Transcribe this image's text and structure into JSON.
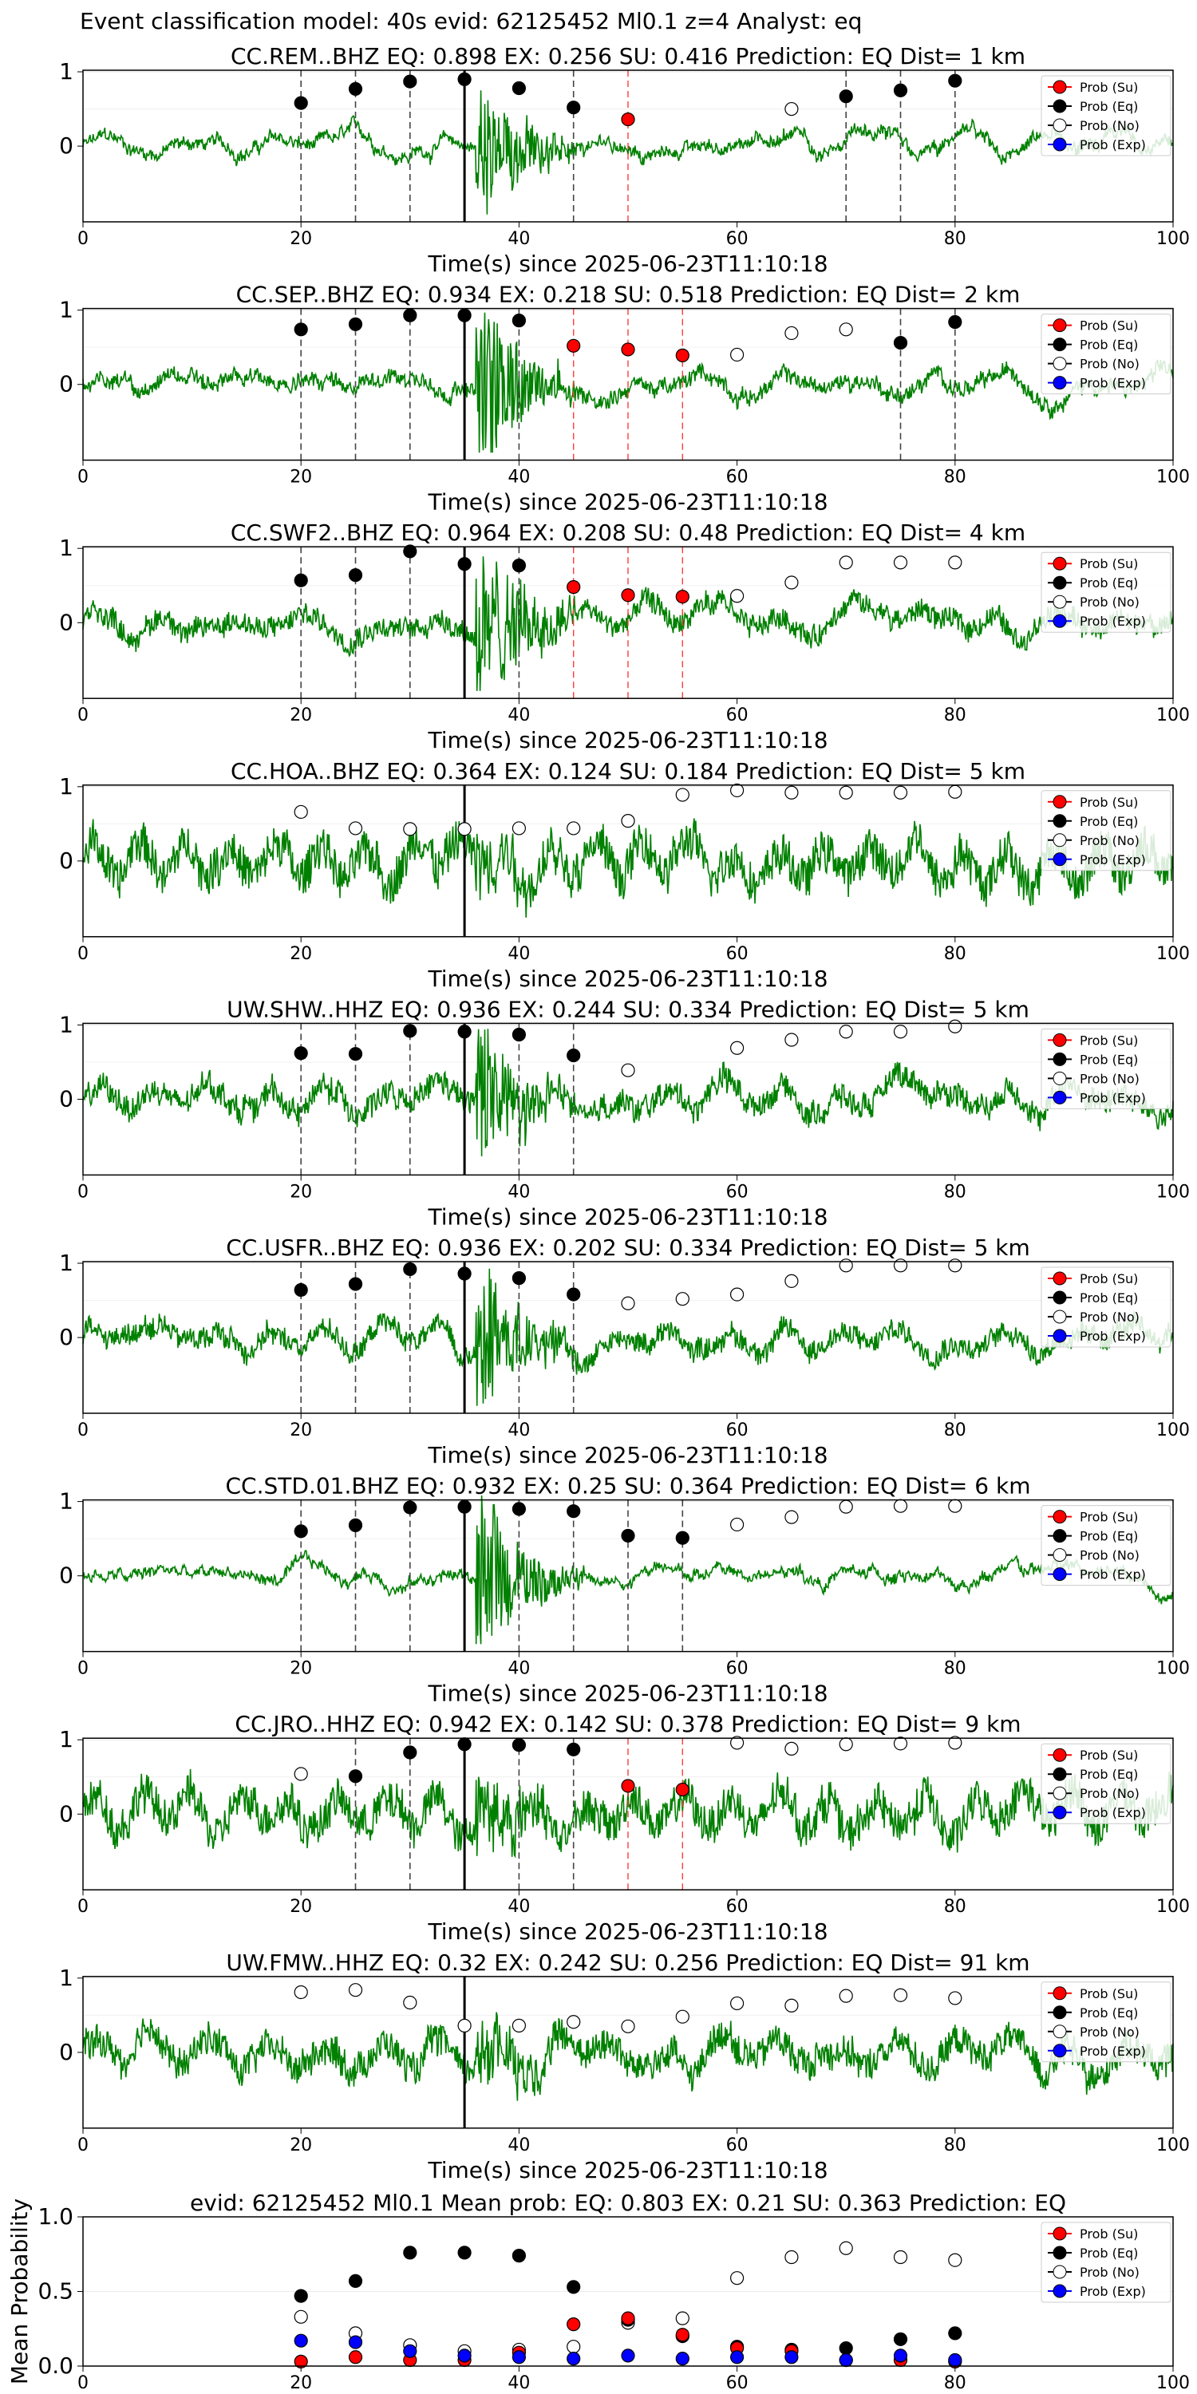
{
  "suptitle": "Event classification model: 40s evid: 62125452 Ml0.1 z=4 Analyst: eq",
  "colors": {
    "su": "#ff0000",
    "eq": "#000000",
    "no": "#ffffff",
    "exp": "#0000ff",
    "trace": "#008000"
  },
  "legend_labels": [
    "Prob (Su)",
    "Prob (Eq)",
    "Prob (No)",
    "Prob (Exp)"
  ],
  "xlabel": "Time(s) since 2025-06-23T11:10:18",
  "xticks": [
    "0",
    "20",
    "40",
    "60",
    "80",
    "100"
  ],
  "yticks": [
    "0",
    "1"
  ],
  "chart_data": [
    {
      "type": "line",
      "title": "CC.REM..BHZ   EQ: 0.898  EX: 0.256  SU: 0.416   Prediction: EQ    Dist= 1 km",
      "xlim": [
        0,
        100
      ],
      "eq": [
        [
          20,
          0.58
        ],
        [
          25,
          0.77
        ],
        [
          30,
          0.87
        ],
        [
          35,
          0.9
        ],
        [
          40,
          0.78
        ],
        [
          45,
          0.52
        ],
        [
          70,
          0.67
        ],
        [
          75,
          0.75
        ],
        [
          80,
          0.88
        ]
      ],
      "su": [
        [
          50,
          0.36
        ]
      ],
      "no": [
        [
          65,
          0.5
        ]
      ],
      "exp": [],
      "vlines_eq": [
        20,
        25,
        30,
        45,
        70,
        75,
        80
      ],
      "vlines_su": [
        50
      ],
      "arrival": 35
    },
    {
      "type": "line",
      "title": "CC.SEP..BHZ   EQ: 0.934  EX: 0.218  SU: 0.518   Prediction: EQ    Dist= 2 km",
      "xlim": [
        0,
        100
      ],
      "eq": [
        [
          20,
          0.74
        ],
        [
          25,
          0.81
        ],
        [
          30,
          0.93
        ],
        [
          35,
          0.93
        ],
        [
          40,
          0.86
        ],
        [
          75,
          0.56
        ],
        [
          80,
          0.84
        ]
      ],
      "su": [
        [
          45,
          0.52
        ],
        [
          50,
          0.47
        ],
        [
          55,
          0.39
        ]
      ],
      "no": [
        [
          60,
          0.4
        ],
        [
          65,
          0.69
        ],
        [
          70,
          0.74
        ]
      ],
      "exp": [],
      "vlines_eq": [
        20,
        25,
        30,
        40,
        75,
        80
      ],
      "vlines_su": [
        45,
        50,
        55
      ],
      "arrival": 35
    },
    {
      "type": "line",
      "title": "CC.SWF2..BHZ   EQ: 0.964  EX: 0.208  SU: 0.48   Prediction: EQ    Dist= 4 km",
      "xlim": [
        0,
        100
      ],
      "eq": [
        [
          20,
          0.57
        ],
        [
          25,
          0.64
        ],
        [
          30,
          0.96
        ],
        [
          35,
          0.79
        ],
        [
          40,
          0.77
        ]
      ],
      "su": [
        [
          45,
          0.48
        ],
        [
          50,
          0.37
        ],
        [
          55,
          0.35
        ]
      ],
      "no": [
        [
          60,
          0.36
        ],
        [
          65,
          0.54
        ],
        [
          70,
          0.81
        ],
        [
          75,
          0.81
        ],
        [
          80,
          0.81
        ]
      ],
      "exp": [],
      "vlines_eq": [
        20,
        25,
        30,
        40
      ],
      "vlines_su": [
        45,
        50,
        55
      ],
      "arrival": 35
    },
    {
      "type": "line",
      "title": "CC.HOA..BHZ   EQ: 0.364  EX: 0.124  SU: 0.184   Prediction: EQ    Dist= 5 km",
      "xlim": [
        0,
        100
      ],
      "eq": [],
      "su": [],
      "no": [
        [
          20,
          0.66
        ],
        [
          25,
          0.44
        ],
        [
          30,
          0.43
        ],
        [
          35,
          0.43
        ],
        [
          40,
          0.44
        ],
        [
          45,
          0.44
        ],
        [
          50,
          0.54
        ],
        [
          55,
          0.89
        ],
        [
          60,
          0.95
        ],
        [
          65,
          0.92
        ],
        [
          70,
          0.92
        ],
        [
          75,
          0.92
        ],
        [
          80,
          0.93
        ]
      ],
      "exp": [],
      "vlines_eq": [],
      "vlines_su": [],
      "arrival": 35
    },
    {
      "type": "line",
      "title": "UW.SHW..HHZ   EQ: 0.936  EX: 0.244  SU: 0.334   Prediction: EQ    Dist= 5 km",
      "xlim": [
        0,
        100
      ],
      "eq": [
        [
          20,
          0.62
        ],
        [
          25,
          0.61
        ],
        [
          30,
          0.92
        ],
        [
          35,
          0.91
        ],
        [
          40,
          0.87
        ],
        [
          45,
          0.59
        ]
      ],
      "su": [],
      "no": [
        [
          50,
          0.39
        ],
        [
          60,
          0.69
        ],
        [
          65,
          0.8
        ],
        [
          70,
          0.91
        ],
        [
          75,
          0.91
        ],
        [
          80,
          0.98
        ]
      ],
      "exp": [],
      "vlines_eq": [
        20,
        25,
        30,
        40,
        45
      ],
      "vlines_su": [],
      "arrival": 35
    },
    {
      "type": "line",
      "title": "CC.USFR..BHZ   EQ: 0.936  EX: 0.202  SU: 0.334   Prediction: EQ    Dist= 5 km",
      "xlim": [
        0,
        100
      ],
      "eq": [
        [
          20,
          0.64
        ],
        [
          25,
          0.72
        ],
        [
          30,
          0.92
        ],
        [
          35,
          0.86
        ],
        [
          40,
          0.8
        ],
        [
          45,
          0.58
        ]
      ],
      "su": [],
      "no": [
        [
          50,
          0.46
        ],
        [
          55,
          0.52
        ],
        [
          60,
          0.58
        ],
        [
          65,
          0.76
        ],
        [
          70,
          0.97
        ],
        [
          75,
          0.97
        ],
        [
          80,
          0.97
        ]
      ],
      "exp": [],
      "vlines_eq": [
        20,
        25,
        30,
        40,
        45
      ],
      "vlines_su": [],
      "arrival": 35
    },
    {
      "type": "line",
      "title": "CC.STD.01.BHZ   EQ: 0.932  EX: 0.25  SU: 0.364   Prediction: EQ    Dist= 6 km",
      "xlim": [
        0,
        100
      ],
      "eq": [
        [
          20,
          0.6
        ],
        [
          25,
          0.68
        ],
        [
          30,
          0.92
        ],
        [
          35,
          0.93
        ],
        [
          40,
          0.9
        ],
        [
          45,
          0.87
        ],
        [
          50,
          0.54
        ],
        [
          55,
          0.51
        ]
      ],
      "su": [],
      "no": [
        [
          60,
          0.69
        ],
        [
          65,
          0.79
        ],
        [
          70,
          0.93
        ],
        [
          75,
          0.94
        ],
        [
          80,
          0.94
        ]
      ],
      "exp": [],
      "vlines_eq": [
        20,
        25,
        30,
        40,
        45,
        50,
        55
      ],
      "vlines_su": [],
      "arrival": 35
    },
    {
      "type": "line",
      "title": "CC.JRO..HHZ   EQ: 0.942  EX: 0.142  SU: 0.378   Prediction: EQ    Dist= 9 km",
      "xlim": [
        0,
        100
      ],
      "eq": [
        [
          25,
          0.51
        ],
        [
          30,
          0.83
        ],
        [
          35,
          0.94
        ],
        [
          40,
          0.93
        ],
        [
          45,
          0.87
        ]
      ],
      "su": [
        [
          50,
          0.38
        ],
        [
          55,
          0.33
        ]
      ],
      "no": [
        [
          20,
          0.54
        ],
        [
          60,
          0.96
        ],
        [
          65,
          0.88
        ],
        [
          70,
          0.94
        ],
        [
          75,
          0.95
        ],
        [
          80,
          0.96
        ]
      ],
      "exp": [],
      "vlines_eq": [
        25,
        30,
        40,
        45
      ],
      "vlines_su": [
        50,
        55
      ],
      "arrival": 35
    },
    {
      "type": "line",
      "title": "UW.FMW..HHZ   EQ: 0.32  EX: 0.242  SU: 0.256   Prediction: EQ    Dist= 91 km",
      "xlim": [
        0,
        100
      ],
      "eq": [],
      "su": [],
      "no": [
        [
          20,
          0.81
        ],
        [
          25,
          0.84
        ],
        [
          30,
          0.67
        ],
        [
          35,
          0.36
        ],
        [
          40,
          0.36
        ],
        [
          45,
          0.41
        ],
        [
          50,
          0.35
        ],
        [
          55,
          0.48
        ],
        [
          60,
          0.66
        ],
        [
          65,
          0.63
        ],
        [
          70,
          0.76
        ],
        [
          75,
          0.77
        ],
        [
          80,
          0.73
        ]
      ],
      "exp": [],
      "vlines_eq": [],
      "vlines_su": [],
      "arrival": 35
    }
  ],
  "mean_chart": {
    "type": "scatter",
    "title": "evid: 62125452  Ml0.1   Mean prob:   EQ: 0.803  EX: 0.21  SU: 0.363   Prediction: EQ",
    "ylabel": "Mean Probability",
    "yticks": [
      "0.0",
      "0.5",
      "1.0"
    ],
    "xlim": [
      0,
      100
    ],
    "ylim": [
      0,
      1
    ],
    "x": [
      20,
      25,
      30,
      35,
      40,
      45,
      50,
      55,
      60,
      65,
      70,
      75,
      80
    ],
    "eq": [
      0.47,
      0.57,
      0.76,
      0.76,
      0.74,
      0.53,
      0.31,
      0.2,
      0.13,
      0.11,
      0.12,
      0.18,
      0.22
    ],
    "su": [
      0.03,
      0.06,
      0.04,
      0.04,
      0.09,
      0.28,
      0.32,
      0.21,
      0.12,
      0.1,
      0.04,
      0.04,
      0.03
    ],
    "no": [
      0.33,
      0.22,
      0.14,
      0.1,
      0.11,
      0.13,
      0.29,
      0.32,
      0.59,
      0.73,
      0.79,
      0.73,
      0.71
    ],
    "exp": [
      0.17,
      0.16,
      0.1,
      0.07,
      0.06,
      0.05,
      0.07,
      0.05,
      0.06,
      0.06,
      0.04,
      0.07,
      0.04
    ]
  }
}
